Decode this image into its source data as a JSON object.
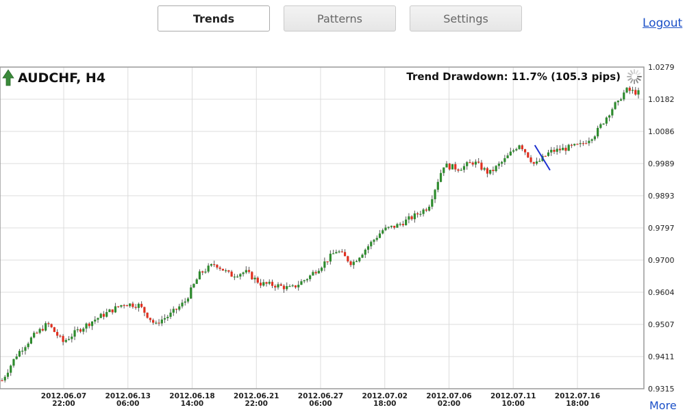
{
  "tabs": [
    {
      "label": "Trends",
      "active": true
    },
    {
      "label": "Patterns",
      "active": false
    },
    {
      "label": "Settings",
      "active": false
    }
  ],
  "links": {
    "logout": "Logout",
    "more": "More"
  },
  "colors": {
    "bull": "#2e8b2e",
    "bear": "#e03020",
    "trendline": "#1c2fd0",
    "grid": "#dcdcdc",
    "arrow": "#3a8a3a"
  },
  "chart_data": {
    "type": "candlestick",
    "title": "AUDCHF, H4",
    "trend_direction": "up",
    "annotation": "Trend Drawdown: 11.7% (105.3 pips)",
    "ylim": [
      0.9315,
      1.0279
    ],
    "y_ticks": [
      "1.0279",
      "1.0182",
      "1.0086",
      "0.9989",
      "0.9893",
      "0.9797",
      "0.9700",
      "0.9604",
      "0.9507",
      "0.9411",
      "0.9315"
    ],
    "x_ticks": [
      {
        "date": "2012.06.07",
        "time": "22:00"
      },
      {
        "date": "2012.06.13",
        "time": "06:00"
      },
      {
        "date": "2012.06.18",
        "time": "14:00"
      },
      {
        "date": "2012.06.21",
        "time": "22:00"
      },
      {
        "date": "2012.06.27",
        "time": "06:00"
      },
      {
        "date": "2012.07.02",
        "time": "18:00"
      },
      {
        "date": "2012.07.06",
        "time": "02:00"
      },
      {
        "date": "2012.07.11",
        "time": "10:00"
      },
      {
        "date": "2012.07.16",
        "time": "18:00"
      }
    ],
    "close_path": [
      [
        0,
        0.934
      ],
      [
        2,
        0.942
      ],
      [
        4,
        0.947
      ],
      [
        6,
        0.951
      ],
      [
        8,
        0.9455
      ],
      [
        10,
        0.949
      ],
      [
        12,
        0.952
      ],
      [
        14,
        0.9545
      ],
      [
        16,
        0.957
      ],
      [
        18,
        0.9565
      ],
      [
        20,
        0.951
      ],
      [
        22,
        0.9535
      ],
      [
        24,
        0.9575
      ],
      [
        26,
        0.966
      ],
      [
        28,
        0.969
      ],
      [
        30,
        0.9655
      ],
      [
        32,
        0.9665
      ],
      [
        34,
        0.963
      ],
      [
        36,
        0.9625
      ],
      [
        38,
        0.9615
      ],
      [
        40,
        0.9645
      ],
      [
        42,
        0.9685
      ],
      [
        44,
        0.973
      ],
      [
        46,
        0.969
      ],
      [
        48,
        0.974
      ],
      [
        50,
        0.979
      ],
      [
        52,
        0.9805
      ],
      [
        54,
        0.983
      ],
      [
        56,
        0.986
      ],
      [
        58,
        0.9985
      ],
      [
        60,
        0.9975
      ],
      [
        62,
        0.9995
      ],
      [
        64,
        0.996
      ],
      [
        66,
        1.0
      ],
      [
        68,
        1.005
      ],
      [
        70,
        0.9985
      ],
      [
        72,
        1.0025
      ],
      [
        74,
        1.0035
      ],
      [
        76,
        1.0045
      ],
      [
        78,
        1.008
      ],
      [
        80,
        1.015
      ],
      [
        82,
        1.021
      ],
      [
        84,
        1.02
      ]
    ],
    "drawdown_line": {
      "from": [
        70,
        1.0045
      ],
      "to": [
        72,
        0.997
      ]
    }
  }
}
